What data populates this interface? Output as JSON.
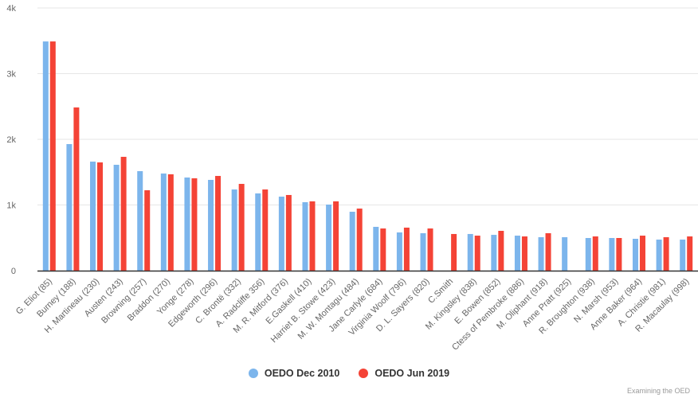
{
  "chart_data": {
    "type": "bar",
    "title": "",
    "xlabel": "",
    "ylabel": "",
    "ylim": [
      0,
      4000
    ],
    "yticks": [
      0,
      1000,
      2000,
      3000,
      4000
    ],
    "ytick_labels": [
      "0",
      "1k",
      "2k",
      "3k",
      "4k"
    ],
    "grid": true,
    "legend_position": "bottom-center",
    "categories": [
      "G. Eliot (85)",
      "Burney (188)",
      "H. Martineau (230)",
      "Austen (243)",
      "Browning (257)",
      "Braddon (270)",
      "Yonge (278)",
      "Edgeworth (296)",
      "C. Brontë (332)",
      "A. Radcliffe 356)",
      "M. R. Mitford (376)",
      "E.Gaskell (410)",
      "Harriet B. Stowe (423)",
      "M. W. Montagu (484)",
      "Jane Carlyle (684)",
      "Virginia Woolf (796)",
      "D. L. Sayers (820)",
      "C.Smith",
      "M. Kingsley (838)",
      "E. Bowen (852)",
      "Ctess of Pembroke (886)",
      "M. Oliphant (918)",
      "Anne Pratt (925)",
      "R. Broughton (938)",
      "N. Marsh (953)",
      "Anne Baker (964)",
      "A. Christie (981)",
      "R. Macaulay (998)"
    ],
    "series": [
      {
        "name": "OEDO Dec 2010",
        "color": "#7cb5ec",
        "values": [
          3490,
          1927,
          1660,
          1612,
          1515,
          1479,
          1418,
          1382,
          1236,
          1176,
          1127,
          1042,
          1006,
          897,
          667,
          582,
          570,
          null,
          558,
          545,
          533,
          509,
          509,
          497,
          497,
          485,
          473,
          473
        ]
      },
      {
        "name": "OEDO Jun 2019",
        "color": "#f44336",
        "values": [
          3490,
          2485,
          1648,
          1733,
          1224,
          1467,
          1406,
          1442,
          1321,
          1236,
          1152,
          1055,
          1055,
          945,
          642,
          655,
          642,
          558,
          533,
          606,
          521,
          570,
          null,
          521,
          497,
          533,
          509,
          521
        ]
      }
    ]
  },
  "legend": {
    "items": [
      {
        "label": "OEDO Dec 2010",
        "color": "#7cb5ec"
      },
      {
        "label": "OEDO Jun 2019",
        "color": "#f44336"
      }
    ]
  },
  "credit": "Examining the OED"
}
